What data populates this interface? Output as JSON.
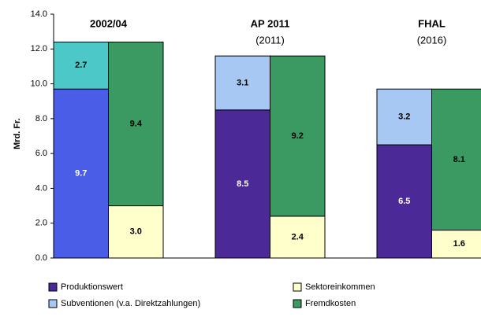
{
  "chart_data": {
    "type": "grouped_stacked_bar",
    "categories": [
      "2002/04",
      "AP 2011",
      "FHAL"
    ],
    "category_sublabels": [
      null,
      "(2011)",
      "(2016)"
    ],
    "ylabel": "Mrd. Fr.",
    "ylim": [
      0,
      14
    ],
    "yticks": [
      {
        "value": 0,
        "label": "0.0"
      },
      {
        "value": 2,
        "label": "2.0"
      },
      {
        "value": 4,
        "label": "4.0"
      },
      {
        "value": 6,
        "label": "6.0"
      },
      {
        "value": 8,
        "label": "8.0"
      },
      {
        "value": 10,
        "label": "10.0"
      },
      {
        "value": 12,
        "label": "12.0"
      },
      {
        "value": 14,
        "label": "14.0"
      }
    ],
    "series": [
      {
        "name": "Produktionswert",
        "color": "#4b2a97",
        "colors": [
          "#4a5de6",
          "#4b2a97",
          "#4b2a97"
        ],
        "stack": "left",
        "values": [
          9.7,
          8.5,
          6.5
        ],
        "value_labels": [
          "9.7",
          "8.5",
          "6.5"
        ]
      },
      {
        "name": "Subventionen (v.a. Direktzahlungen)",
        "color": "#a6c8f2",
        "colors": [
          "#4cc8c8",
          "#a6c8f2",
          "#a6c8f2"
        ],
        "stack": "left",
        "values": [
          2.7,
          3.1,
          3.2
        ],
        "value_labels": [
          "2.7",
          "3.1",
          "3.2"
        ]
      },
      {
        "name": "Sektoreinkommen",
        "color": "#ffffcc",
        "colors": [
          "#ffffcc",
          "#ffffcc",
          "#ffffcc"
        ],
        "stack": "right",
        "values": [
          3.0,
          2.4,
          1.6
        ],
        "value_labels": [
          "3.0",
          "2.4",
          "1.6"
        ]
      },
      {
        "name": "Fremdkosten",
        "color": "#3a9a62",
        "colors": [
          "#3a9a62",
          "#3a9a62",
          "#3a9a62"
        ],
        "stack": "right",
        "values": [
          9.4,
          9.2,
          8.1
        ],
        "value_labels": [
          "9.4",
          "9.2",
          "8.1"
        ]
      }
    ],
    "legend": "bottom"
  }
}
